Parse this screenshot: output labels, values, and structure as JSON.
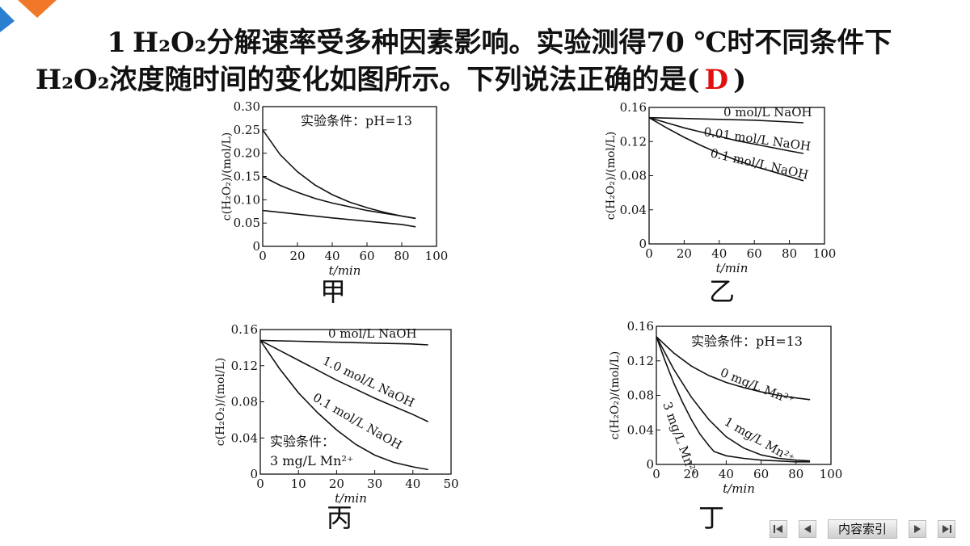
{
  "question": {
    "number": "1",
    "line1": "H₂O₂分解速率受多种因素影响。实验测得70 ℃时不同条件下",
    "line2_prefix": "H₂O₂浓度随时间的变化如图所示。下列说法正确的是(",
    "answer": "D",
    "line2_suffix": ")"
  },
  "nav": {
    "index_label": "内容索引",
    "icons": [
      "first-page-icon",
      "prev-page-icon",
      "next-page-icon",
      "last-page-icon"
    ]
  },
  "chart_data": [
    {
      "type": "line",
      "panel_label": "甲",
      "ylabel": "c(H₂O₂)/(mol/L)",
      "xlabel": "t/min",
      "xlim": [
        0,
        100
      ],
      "ylim": [
        0,
        0.3
      ],
      "xticks": [
        "0",
        "20",
        "40",
        "60",
        "80",
        "100"
      ],
      "yticks": [
        "0",
        "0.05",
        "0.10",
        "0.15",
        "0.20",
        "0.25",
        "0.30"
      ],
      "annotation": "实验条件：pH=13",
      "series": [
        {
          "x": [
            0,
            10,
            20,
            30,
            40,
            50,
            60,
            70,
            80,
            88
          ],
          "values": [
            0.25,
            0.197,
            0.16,
            0.132,
            0.111,
            0.095,
            0.083,
            0.073,
            0.065,
            0.06
          ]
        },
        {
          "x": [
            0,
            10,
            20,
            30,
            40,
            50,
            60,
            70,
            80,
            88
          ],
          "values": [
            0.15,
            0.131,
            0.116,
            0.103,
            0.093,
            0.085,
            0.077,
            0.071,
            0.065,
            0.06
          ]
        },
        {
          "x": [
            0,
            20,
            40,
            60,
            80,
            88
          ],
          "values": [
            0.077,
            0.069,
            0.061,
            0.054,
            0.047,
            0.042
          ]
        }
      ]
    },
    {
      "type": "line",
      "panel_label": "乙",
      "ylabel": "c(H₂O₂)/(mol/L)",
      "xlabel": "t/min",
      "xlim": [
        0,
        100
      ],
      "ylim": [
        0,
        0.16
      ],
      "xticks": [
        "0",
        "20",
        "40",
        "60",
        "80",
        "100"
      ],
      "yticks": [
        "0",
        "0.04",
        "0.08",
        "0.12",
        "0.16"
      ],
      "series": [
        {
          "name": "0 mol/L NaOH",
          "x": [
            0,
            20,
            40,
            60,
            80,
            88
          ],
          "values": [
            0.148,
            0.147,
            0.146,
            0.145,
            0.143,
            0.142
          ]
        },
        {
          "name": "0.01 mol/L NaOH",
          "x": [
            0,
            10,
            20,
            30,
            40,
            50,
            60,
            70,
            80,
            88
          ],
          "values": [
            0.148,
            0.142,
            0.136,
            0.131,
            0.126,
            0.121,
            0.117,
            0.113,
            0.109,
            0.106
          ]
        },
        {
          "name": "0.1 mol/L NaOH",
          "x": [
            0,
            10,
            20,
            30,
            40,
            50,
            60,
            70,
            80,
            88
          ],
          "values": [
            0.148,
            0.136,
            0.125,
            0.115,
            0.106,
            0.098,
            0.091,
            0.085,
            0.079,
            0.074
          ]
        }
      ]
    },
    {
      "type": "line",
      "panel_label": "丙",
      "ylabel": "c(H₂O₂)/(mol/L)",
      "xlabel": "t/min",
      "xlim": [
        0,
        50
      ],
      "ylim": [
        0,
        0.16
      ],
      "xticks": [
        "0",
        "10",
        "20",
        "30",
        "40",
        "50"
      ],
      "yticks": [
        "0",
        "0.04",
        "0.08",
        "0.12",
        "0.16"
      ],
      "annotation": "实验条件：3 mg/L Mn²⁺",
      "series": [
        {
          "name": "0 mol/L NaOH",
          "x": [
            0,
            10,
            20,
            30,
            40,
            44
          ],
          "values": [
            0.148,
            0.147,
            0.146,
            0.145,
            0.144,
            0.143
          ]
        },
        {
          "name": "1.0 mol/L NaOH",
          "x": [
            0,
            5,
            10,
            15,
            20,
            25,
            30,
            35,
            40,
            44
          ],
          "values": [
            0.148,
            0.137,
            0.126,
            0.115,
            0.104,
            0.094,
            0.084,
            0.075,
            0.066,
            0.058
          ]
        },
        {
          "name": "0.1 mol/L NaOH",
          "x": [
            0,
            5,
            10,
            15,
            20,
            25,
            30,
            35,
            40,
            44
          ],
          "values": [
            0.148,
            0.117,
            0.09,
            0.068,
            0.049,
            0.033,
            0.021,
            0.013,
            0.008,
            0.005
          ]
        }
      ]
    },
    {
      "type": "line",
      "panel_label": "丁",
      "ylabel": "c(H₂O₂)/(mol/L)",
      "xlabel": "t/min",
      "xlim": [
        0,
        100
      ],
      "ylim": [
        0,
        0.16
      ],
      "xticks": [
        "0",
        "20",
        "40",
        "60",
        "80",
        "100"
      ],
      "yticks": [
        "0",
        "0.04",
        "0.08",
        "0.12",
        "0.16"
      ],
      "annotation": "实验条件：pH=13",
      "series": [
        {
          "name": "0 mg/L Mn²⁺",
          "x": [
            0,
            10,
            20,
            30,
            40,
            50,
            60,
            70,
            80,
            88
          ],
          "values": [
            0.148,
            0.129,
            0.114,
            0.103,
            0.095,
            0.089,
            0.084,
            0.08,
            0.077,
            0.075
          ]
        },
        {
          "name": "1 mg/L Mn²⁺",
          "x": [
            0,
            10,
            20,
            30,
            40,
            50,
            60,
            70,
            80,
            88
          ],
          "values": [
            0.148,
            0.11,
            0.078,
            0.052,
            0.032,
            0.019,
            0.011,
            0.007,
            0.005,
            0.004
          ]
        },
        {
          "name": "3 mg/L Mn²⁺",
          "x": [
            0,
            5,
            10,
            15,
            20,
            25,
            30,
            33,
            40,
            50,
            60,
            70,
            80,
            88
          ],
          "values": [
            0.148,
            0.12,
            0.094,
            0.072,
            0.052,
            0.035,
            0.022,
            0.015,
            0.01,
            0.007,
            0.005,
            0.004,
            0.003,
            0.003
          ]
        }
      ]
    }
  ]
}
